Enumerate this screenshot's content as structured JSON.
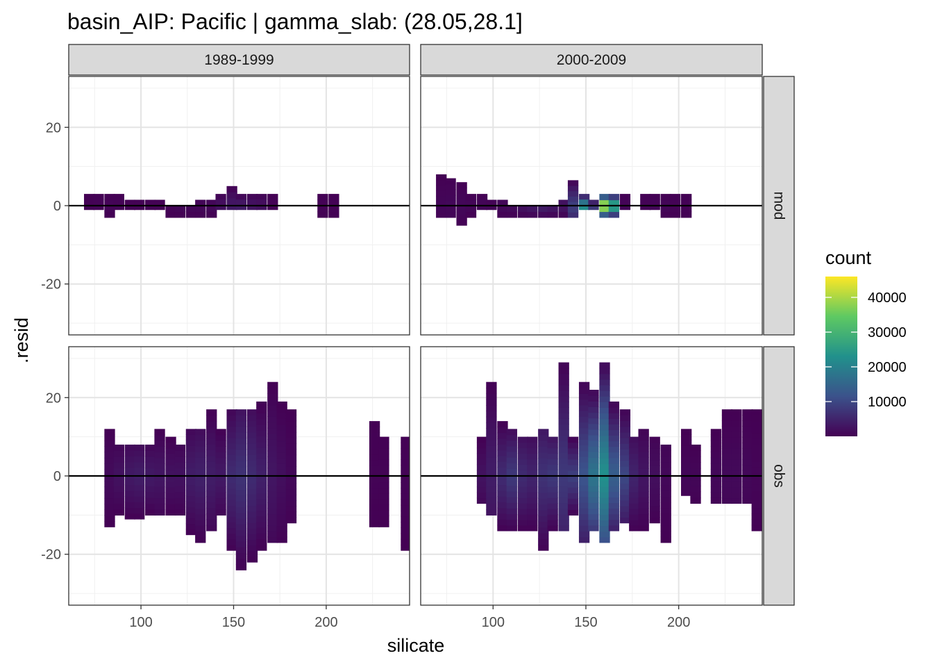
{
  "chart_data": {
    "type": "heatmap",
    "title": "basin_AIP: Pacific | gamma_slab: (28.05,28.1]",
    "xlabel": "silicate",
    "ylabel": ".resid",
    "xlim": [
      61,
      245
    ],
    "ylim": [
      -33,
      33
    ],
    "x_ticks": [
      100,
      150,
      200
    ],
    "x_minor": [
      75,
      125,
      175,
      225
    ],
    "y_ticks": [
      -20,
      0,
      20
    ],
    "y_minor": [
      -30,
      -10,
      10,
      30
    ],
    "bin_width": 5.5,
    "bin_height": 1.45,
    "reference_line": 0,
    "grid": true,
    "legend": {
      "title": "count",
      "position": "right",
      "range": [
        0,
        46000
      ],
      "ticks": [
        10000,
        20000,
        30000,
        40000
      ],
      "colors": [
        "#440154",
        "#3b528b",
        "#21918c",
        "#5ec962",
        "#fde725"
      ]
    },
    "col_facets": [
      "1989-1999",
      "2000-2009"
    ],
    "row_facets": [
      "mod",
      "obs"
    ],
    "panels": [
      {
        "col": "1989-1999",
        "row": "mod",
        "columns": [
          {
            "x": 72,
            "y0": -1,
            "y1": 3,
            "count": 400
          },
          {
            "x": 77,
            "y0": -1,
            "y1": 3,
            "count": 600
          },
          {
            "x": 83,
            "y0": -3,
            "y1": 3,
            "count": 700
          },
          {
            "x": 88,
            "y0": -1,
            "y1": 3,
            "count": 600
          },
          {
            "x": 94,
            "y0": -1,
            "y1": 1.5,
            "count": 500
          },
          {
            "x": 99,
            "y0": -1,
            "y1": 1.5,
            "count": 500
          },
          {
            "x": 105,
            "y0": -1,
            "y1": 1.5,
            "count": 500
          },
          {
            "x": 110,
            "y0": -1,
            "y1": 1.5,
            "count": 500
          },
          {
            "x": 116,
            "y0": -3,
            "y1": 0,
            "count": 600
          },
          {
            "x": 121,
            "y0": -3,
            "y1": 0,
            "count": 800
          },
          {
            "x": 127,
            "y0": -3,
            "y1": 0,
            "count": 900
          },
          {
            "x": 132,
            "y0": -3,
            "y1": 1.5,
            "count": 900
          },
          {
            "x": 138,
            "y0": -3,
            "y1": 1.5,
            "count": 1000
          },
          {
            "x": 143,
            "y0": -1,
            "y1": 3,
            "count": 2500
          },
          {
            "x": 149,
            "y0": -1,
            "y1": 5,
            "count": 3500
          },
          {
            "x": 154,
            "y0": -1,
            "y1": 3,
            "count": 4000
          },
          {
            "x": 160,
            "y0": -1,
            "y1": 3,
            "count": 3000
          },
          {
            "x": 165,
            "y0": -1,
            "y1": 3,
            "count": 2500
          },
          {
            "x": 171,
            "y0": -1,
            "y1": 3,
            "count": 600
          },
          {
            "x": 198,
            "y0": -3,
            "y1": 3,
            "count": 400
          },
          {
            "x": 204,
            "y0": -3,
            "y1": 3,
            "count": 400
          }
        ]
      },
      {
        "col": "2000-2009",
        "row": "mod",
        "columns": [
          {
            "x": 72,
            "y0": -3,
            "y1": 8,
            "count": 800
          },
          {
            "x": 77,
            "y0": -3,
            "y1": 7,
            "count": 1000
          },
          {
            "x": 83,
            "y0": -5,
            "y1": 6,
            "count": 1000
          },
          {
            "x": 88,
            "y0": -3,
            "y1": 3,
            "count": 900
          },
          {
            "x": 94,
            "y0": -1,
            "y1": 3,
            "count": 900
          },
          {
            "x": 99,
            "y0": -1,
            "y1": 1.5,
            "count": 900
          },
          {
            "x": 105,
            "y0": -3,
            "y1": 1.5,
            "count": 1200
          },
          {
            "x": 110,
            "y0": -3,
            "y1": 0,
            "count": 1500
          },
          {
            "x": 116,
            "y0": -3,
            "y1": 0,
            "count": 2500
          },
          {
            "x": 121,
            "y0": -3,
            "y1": 0,
            "count": 3500
          },
          {
            "x": 127,
            "y0": -3,
            "y1": 0,
            "count": 4500
          },
          {
            "x": 132,
            "y0": -3,
            "y1": 0,
            "count": 3500
          },
          {
            "x": 138,
            "y0": -3,
            "y1": 1.5,
            "count": 3000
          },
          {
            "x": 143,
            "y0": -3,
            "y1": 6.5,
            "count": 9000
          },
          {
            "x": 149,
            "y0": -1,
            "y1": 3,
            "count": 24000
          },
          {
            "x": 154,
            "y0": -1,
            "y1": 1.5,
            "count": 10000
          },
          {
            "x": 160,
            "y0": -3,
            "y1": 3,
            "count": 46000
          },
          {
            "x": 165,
            "y0": -3,
            "y1": 3,
            "count": 30000
          },
          {
            "x": 171,
            "y0": -1,
            "y1": 3,
            "count": 800
          },
          {
            "x": 182,
            "y0": -1,
            "y1": 3,
            "count": 600
          },
          {
            "x": 187,
            "y0": -1,
            "y1": 3,
            "count": 800
          },
          {
            "x": 193,
            "y0": -3,
            "y1": 3,
            "count": 800
          },
          {
            "x": 198,
            "y0": -3,
            "y1": 3,
            "count": 600
          },
          {
            "x": 204,
            "y0": -3,
            "y1": 3,
            "count": 400
          }
        ]
      },
      {
        "col": "1989-1999",
        "row": "obs",
        "columns": [
          {
            "x": 83,
            "y0": -13,
            "y1": 12,
            "count": 1500
          },
          {
            "x": 88,
            "y0": -10,
            "y1": 8,
            "count": 2500
          },
          {
            "x": 94,
            "y0": -11,
            "y1": 8,
            "count": 3500
          },
          {
            "x": 99,
            "y0": -11,
            "y1": 8,
            "count": 4000
          },
          {
            "x": 105,
            "y0": -10,
            "y1": 8,
            "count": 3500
          },
          {
            "x": 110,
            "y0": -10,
            "y1": 12,
            "count": 3000
          },
          {
            "x": 116,
            "y0": -10,
            "y1": 10,
            "count": 2500
          },
          {
            "x": 121,
            "y0": -10,
            "y1": 8,
            "count": 2500
          },
          {
            "x": 127,
            "y0": -15,
            "y1": 12,
            "count": 4000
          },
          {
            "x": 132,
            "y0": -17,
            "y1": 12,
            "count": 4500
          },
          {
            "x": 138,
            "y0": -14,
            "y1": 17,
            "count": 4000
          },
          {
            "x": 143,
            "y0": -10,
            "y1": 12,
            "count": 3500
          },
          {
            "x": 149,
            "y0": -19,
            "y1": 17,
            "count": 6000
          },
          {
            "x": 154,
            "y0": -24,
            "y1": 17,
            "count": 7000
          },
          {
            "x": 160,
            "y0": -22,
            "y1": 17,
            "count": 6000
          },
          {
            "x": 165,
            "y0": -19,
            "y1": 19,
            "count": 4500
          },
          {
            "x": 171,
            "y0": -17,
            "y1": 24,
            "count": 3000
          },
          {
            "x": 176,
            "y0": -17,
            "y1": 19,
            "count": 2000
          },
          {
            "x": 181,
            "y0": -12,
            "y1": 17,
            "count": 1000
          },
          {
            "x": 226,
            "y0": -13,
            "y1": 14,
            "count": 400
          },
          {
            "x": 231,
            "y0": -13,
            "y1": 10,
            "count": 400
          },
          {
            "x": 243,
            "y0": -19,
            "y1": 10,
            "count": 400
          }
        ]
      },
      {
        "col": "2000-2009",
        "row": "obs",
        "columns": [
          {
            "x": 94,
            "y0": -7,
            "y1": 10,
            "count": 2500
          },
          {
            "x": 99,
            "y0": -10,
            "y1": 24,
            "count": 4000
          },
          {
            "x": 105,
            "y0": -14,
            "y1": 14,
            "count": 6000
          },
          {
            "x": 110,
            "y0": -14,
            "y1": 12,
            "count": 8000
          },
          {
            "x": 116,
            "y0": -14,
            "y1": 10,
            "count": 6000
          },
          {
            "x": 121,
            "y0": -14,
            "y1": 10,
            "count": 5000
          },
          {
            "x": 127,
            "y0": -19,
            "y1": 12,
            "count": 7000
          },
          {
            "x": 132,
            "y0": -14,
            "y1": 10,
            "count": 8000
          },
          {
            "x": 138,
            "y0": -14,
            "y1": 29,
            "count": 8000
          },
          {
            "x": 143,
            "y0": -10,
            "y1": 10,
            "count": 9000
          },
          {
            "x": 149,
            "y0": -17,
            "y1": 24,
            "count": 12000
          },
          {
            "x": 154,
            "y0": -14,
            "y1": 22,
            "count": 18000
          },
          {
            "x": 160,
            "y0": -17,
            "y1": 29,
            "count": 23000
          },
          {
            "x": 165,
            "y0": -14,
            "y1": 19,
            "count": 14000
          },
          {
            "x": 171,
            "y0": -12,
            "y1": 17,
            "count": 10000
          },
          {
            "x": 176,
            "y0": -14,
            "y1": 10,
            "count": 5000
          },
          {
            "x": 181,
            "y0": -14,
            "y1": 12,
            "count": 3000
          },
          {
            "x": 187,
            "y0": -12,
            "y1": 10,
            "count": 2000
          },
          {
            "x": 193,
            "y0": -17,
            "y1": 8,
            "count": 1000
          },
          {
            "x": 204,
            "y0": -5,
            "y1": 12,
            "count": 800
          },
          {
            "x": 209,
            "y0": -7,
            "y1": 8,
            "count": 800
          },
          {
            "x": 220,
            "y0": -7,
            "y1": 12,
            "count": 1000
          },
          {
            "x": 226,
            "y0": -7,
            "y1": 17,
            "count": 1200
          },
          {
            "x": 231,
            "y0": -7,
            "y1": 17,
            "count": 1200
          },
          {
            "x": 237,
            "y0": -7,
            "y1": 17,
            "count": 1000
          },
          {
            "x": 242,
            "y0": -14,
            "y1": 17,
            "count": 600
          },
          {
            "x": 248,
            "y0": -10,
            "y1": 14,
            "count": 400
          }
        ]
      }
    ]
  }
}
